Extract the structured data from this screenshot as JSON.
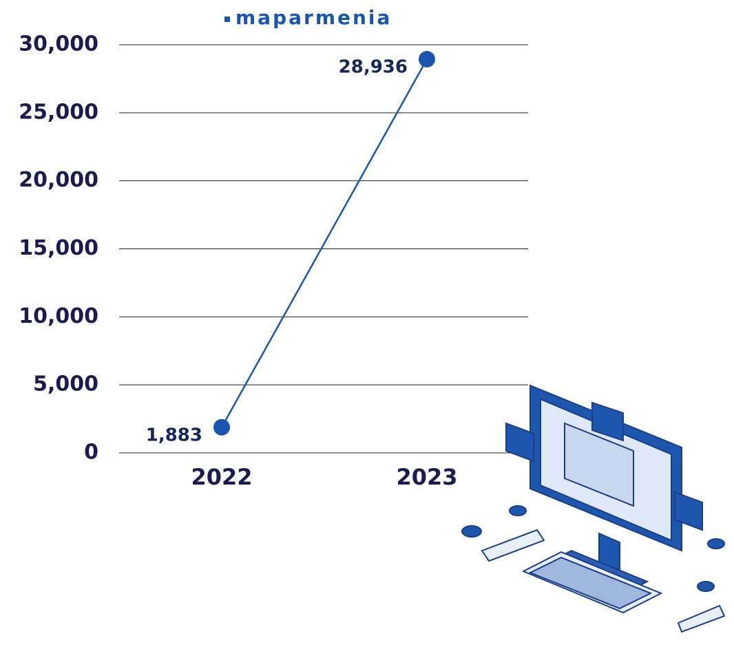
{
  "chart_data": {
    "type": "line",
    "categories": [
      "2022",
      "2023"
    ],
    "series": [
      {
        "name": "maparmenia",
        "color": "#1a56b0",
        "values": [
          1883,
          28936
        ],
        "value_labels": [
          "1,883",
          "28,936"
        ]
      }
    ],
    "ylim": [
      0,
      30000
    ],
    "yticks": [
      0,
      {
        "value": 5000,
        "label": "5,000"
      },
      {
        "value": 10000,
        "label": "10,000"
      },
      {
        "value": 15000,
        "label": "15,000"
      },
      {
        "value": 20000,
        "label": "20,000"
      },
      {
        "value": 25000,
        "label": "25,000"
      },
      {
        "value": 30000,
        "label": "30,000"
      }
    ],
    "grid": true,
    "legend": "top"
  }
}
